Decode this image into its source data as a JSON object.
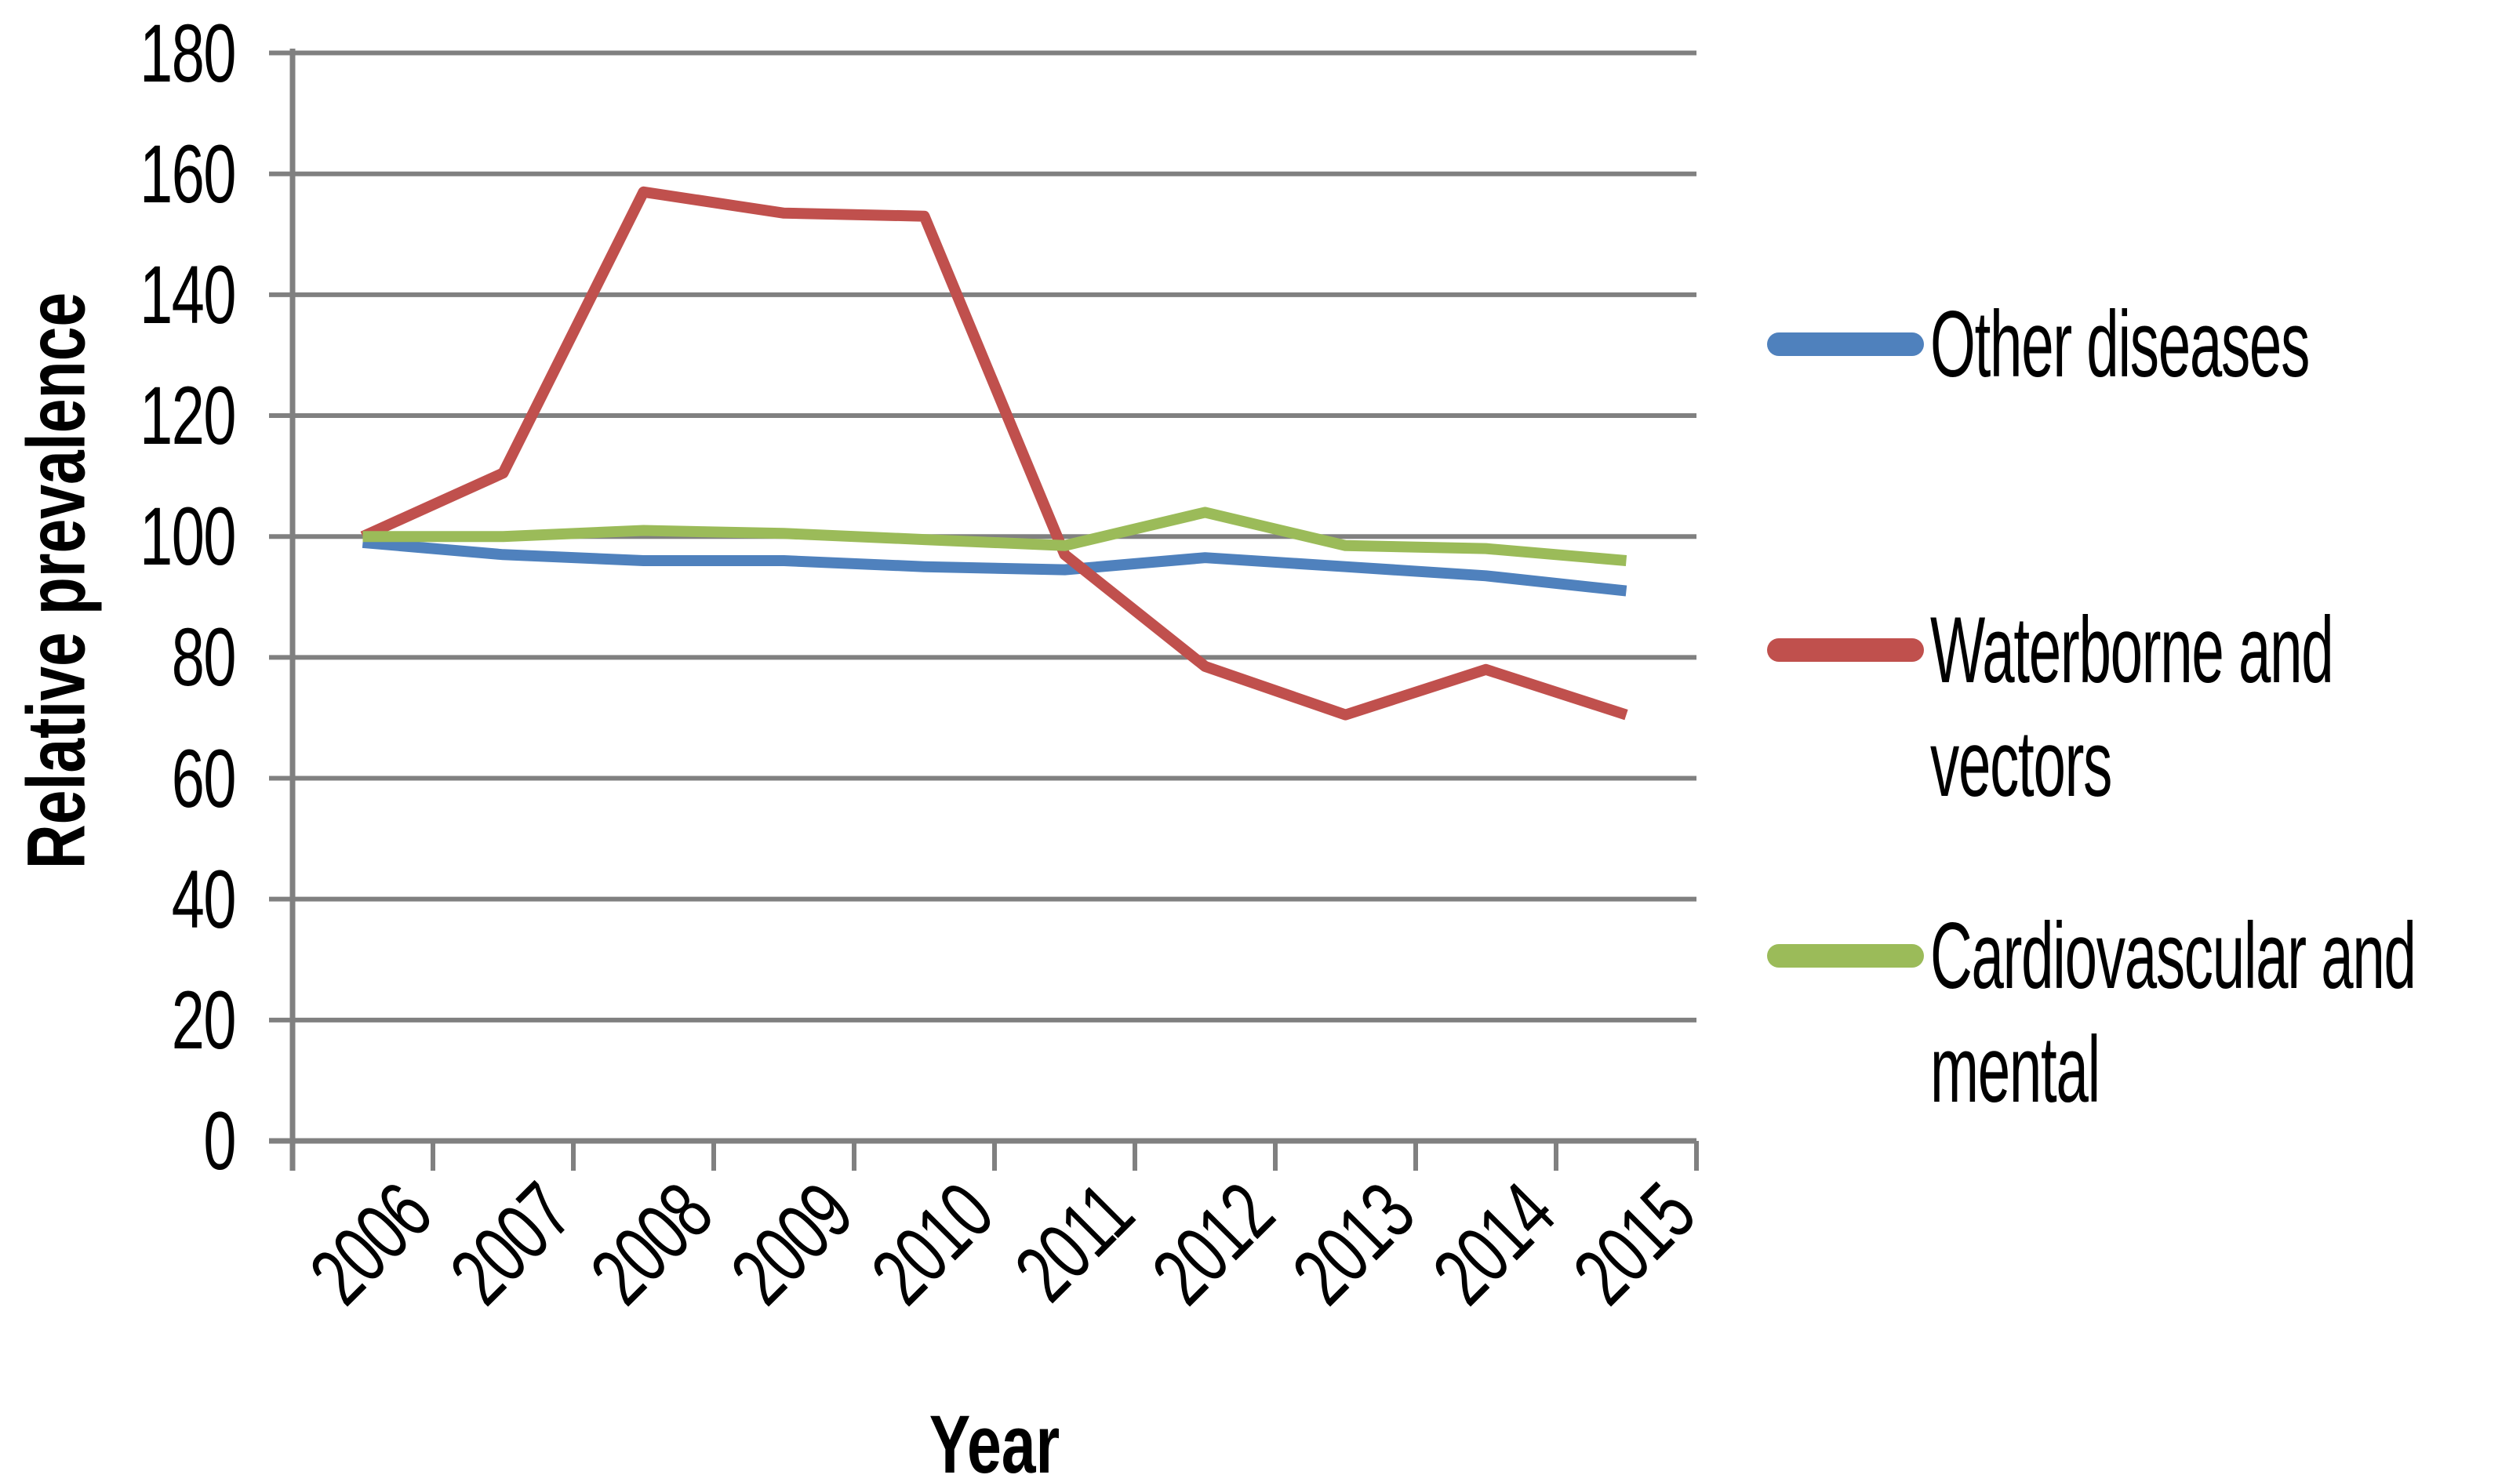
{
  "chart_data": {
    "type": "line",
    "title": "",
    "xlabel": "Year",
    "ylabel": "Relative prevalence",
    "categories": [
      "2006",
      "2007",
      "2008",
      "2009",
      "2010",
      "2011",
      "2012",
      "2013",
      "2014",
      "2015"
    ],
    "yticks": [
      0,
      20,
      40,
      60,
      80,
      100,
      120,
      140,
      160,
      180
    ],
    "ylim": [
      0,
      180
    ],
    "grid": true,
    "legend_position": "right",
    "axis_color": "#808080",
    "gridline_color": "#808080",
    "series": [
      {
        "name": "Other diseases",
        "legend_lines": [
          "Other diseases"
        ],
        "color": "#4F81BD",
        "values": [
          99,
          97,
          96,
          96,
          95,
          94.5,
          96.5,
          95,
          93.5,
          91
        ]
      },
      {
        "name": "Waterborne and vectors",
        "legend_lines": [
          "Waterborne and",
          "vectors"
        ],
        "color": "#C0504D",
        "values": [
          100,
          110.5,
          157,
          153.5,
          153,
          97,
          78.5,
          70.5,
          78,
          70.5
        ]
      },
      {
        "name": "Cardiovascular and mental",
        "legend_lines": [
          "Cardiovascular and",
          "mental"
        ],
        "color": "#9BBB59",
        "values": [
          100,
          100,
          101,
          100.5,
          99.5,
          98.5,
          104,
          98.5,
          98,
          96
        ]
      }
    ]
  }
}
